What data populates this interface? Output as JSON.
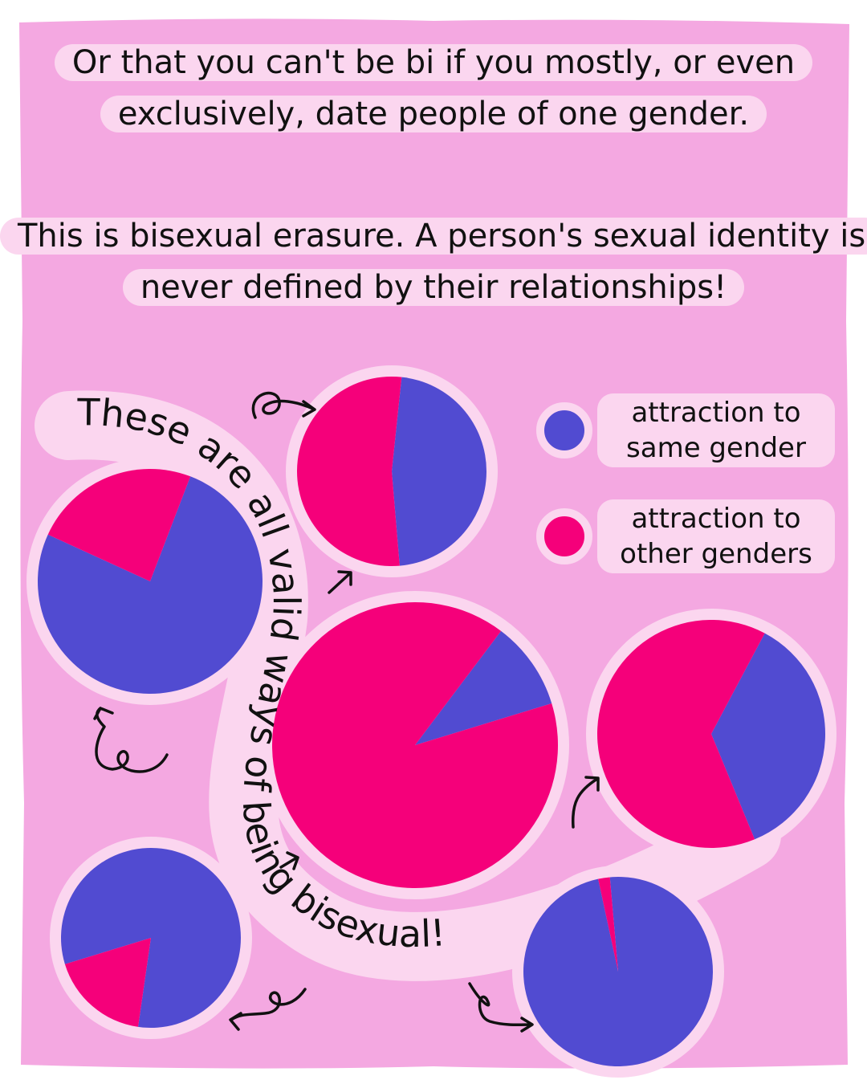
{
  "caption_top": "Or that you can't be bi if you mostly, or even exclusively, date people of one gender.",
  "caption_middle": "This is bisexual erasure. A person's sexual identity is never defined by their relationships!",
  "curved_text": "These are all valid ways of being bisexual!",
  "legend": [
    {
      "label": "attraction to same gender",
      "color": "#514bd1"
    },
    {
      "label": "attraction to other genders",
      "color": "#f5007a"
    }
  ],
  "colors": {
    "panel": "#f4a8e1",
    "halo": "#fbd6ef",
    "frame": "#ffffff",
    "ink": "#111111"
  },
  "chart_data": {
    "type": "pie",
    "series_names": [
      "attraction to same gender",
      "attraction to other genders"
    ],
    "pies": [
      {
        "name": "pie-1",
        "values": [
          0.47,
          0.53
        ]
      },
      {
        "name": "pie-2",
        "values": [
          0.76,
          0.24
        ]
      },
      {
        "name": "pie-3",
        "values": [
          0.1,
          0.9
        ]
      },
      {
        "name": "pie-4",
        "values": [
          0.36,
          0.64
        ]
      },
      {
        "name": "pie-5",
        "values": [
          0.82,
          0.18
        ]
      },
      {
        "name": "pie-6",
        "values": [
          0.98,
          0.02
        ]
      }
    ]
  }
}
